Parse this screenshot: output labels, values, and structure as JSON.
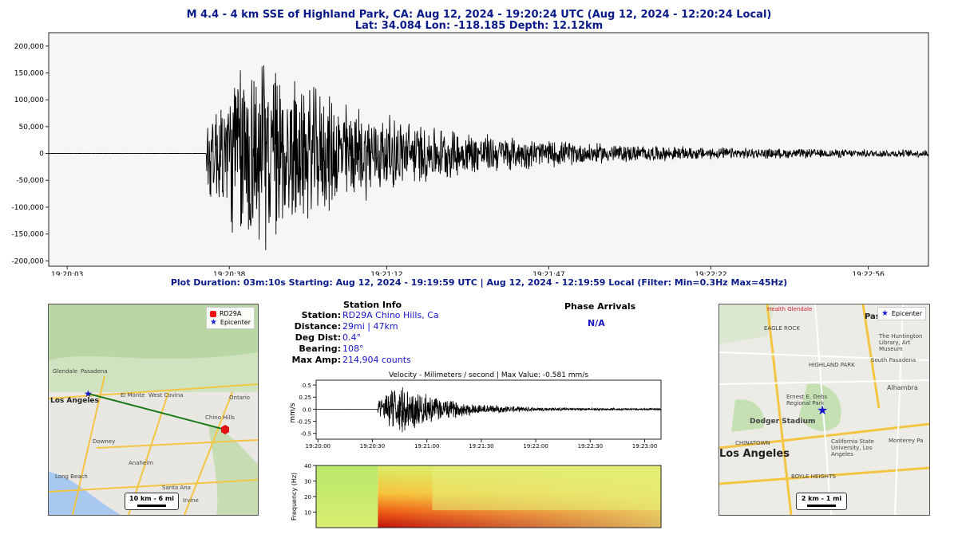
{
  "header": {
    "title": "M 4.4 - 4 km SSE of Highland Park, CA:  Aug 12, 2024 - 19:20:24 UTC (Aug 12, 2024 - 12:20:24 Local)",
    "subtitle": "Lat: 34.084 Lon: -118.185 Depth: 12.12km"
  },
  "footer": "Plot Duration: 03m:10s  Starting: Aug 12, 2024 - 19:19:59 UTC | Aug 12, 2024 - 12:19:59 Local   (Filter:  Min=0.3Hz  Max=45Hz)",
  "station": {
    "heading": "Station Info",
    "rows": [
      {
        "key": "Station:",
        "value": "RD29A Chino Hills, Ca"
      },
      {
        "key": "Distance:",
        "value": "29mi | 47km"
      },
      {
        "key": "Deg Dist:",
        "value": "0.4°"
      },
      {
        "key": "Bearing:",
        "value": "108°"
      },
      {
        "key": "Max Amp:",
        "value": "214,904 counts"
      }
    ]
  },
  "phase": {
    "heading": "Phase Arrivals",
    "value": "N/A"
  },
  "map_left": {
    "legend": [
      "RD29A",
      "Epicenter"
    ],
    "scale": "10 km - 6 mi",
    "places": [
      "Glendale",
      "Pasadena",
      "Los Angeles",
      "El Monte",
      "West Covina",
      "Downey",
      "Anaheim",
      "Long Beach",
      "Santa Ana",
      "Irvine",
      "Chino Hills",
      "Ontario"
    ]
  },
  "map_right": {
    "legend": "Epicenter",
    "scale": "2 km - 1 mi",
    "places": [
      "Health Glendale",
      "Pas",
      "EAGLE ROCK",
      "HIGHLAND PARK",
      "South Pasadena",
      "Alhambra",
      "Dodger Stadium",
      "Ernest E. Debs Regional Park",
      "California State University, Los Angeles",
      "Monterey Pa",
      "CHINATOWN",
      "Los Angeles",
      "BOYLE HEIGHTS",
      "The Huntington Library, Art Museum"
    ]
  },
  "colors": {
    "title": "#0a1a8a",
    "value": "#1414c8",
    "trace": "#000000",
    "station_marker": "#e11111",
    "epicenter_marker": "#1a1acc"
  },
  "chart_data": [
    {
      "type": "line",
      "name": "seismogram-counts",
      "ylim": [
        -210000,
        225000
      ],
      "xlim": [
        0,
        190
      ],
      "yticks": [
        -200000,
        -150000,
        -100000,
        -50000,
        0,
        50000,
        100000,
        150000,
        200000
      ],
      "ytick_labels": [
        "-200,000",
        "-150,000",
        "-100,000",
        "-50,000",
        "0",
        "50,000",
        "100,000",
        "150,000",
        "200,000"
      ],
      "xtick_labels": [
        "19:20:03",
        "19:20:38",
        "19:21:12",
        "19:21:47",
        "19:22:22",
        "19:22:56"
      ],
      "xtick_seconds": [
        4,
        39,
        73,
        108,
        143,
        177
      ],
      "envelope": {
        "onset_s": 34,
        "peak_s": 43,
        "peak_amp": 214904,
        "decay_s": 28
      },
      "grid": false
    },
    {
      "type": "line",
      "name": "velocity",
      "title": "Velocity - Milimeters / second | Max Value: -0.581 mm/s",
      "ylabel": "mm/s",
      "ylim": [
        -0.62,
        0.6
      ],
      "xlim": [
        0,
        190
      ],
      "yticks": [
        -0.5,
        -0.25,
        0.0,
        0.25,
        0.5
      ],
      "ytick_labels": [
        "-0.5",
        "-0.25",
        "0.0",
        "0.25",
        "0.5"
      ],
      "xtick_labels": [
        "19:20:00",
        "19:20:30",
        "19:21:00",
        "19:21:30",
        "19:22:00",
        "19:22:30",
        "19:23:00"
      ],
      "xtick_seconds": [
        1,
        31,
        61,
        91,
        121,
        151,
        181
      ],
      "envelope": {
        "onset_s": 34,
        "peak_s": 45,
        "peak_amp": 0.581,
        "decay_s": 26
      }
    },
    {
      "type": "heatmap",
      "name": "spectrogram",
      "ylabel": "Frequency (Hz)",
      "ylim": [
        0,
        40
      ],
      "yticks": [
        10,
        20,
        30,
        40
      ],
      "ytick_labels": [
        "10",
        "20",
        "30",
        "40"
      ],
      "xlim": [
        0,
        190
      ],
      "onset_s": 34
    }
  ]
}
